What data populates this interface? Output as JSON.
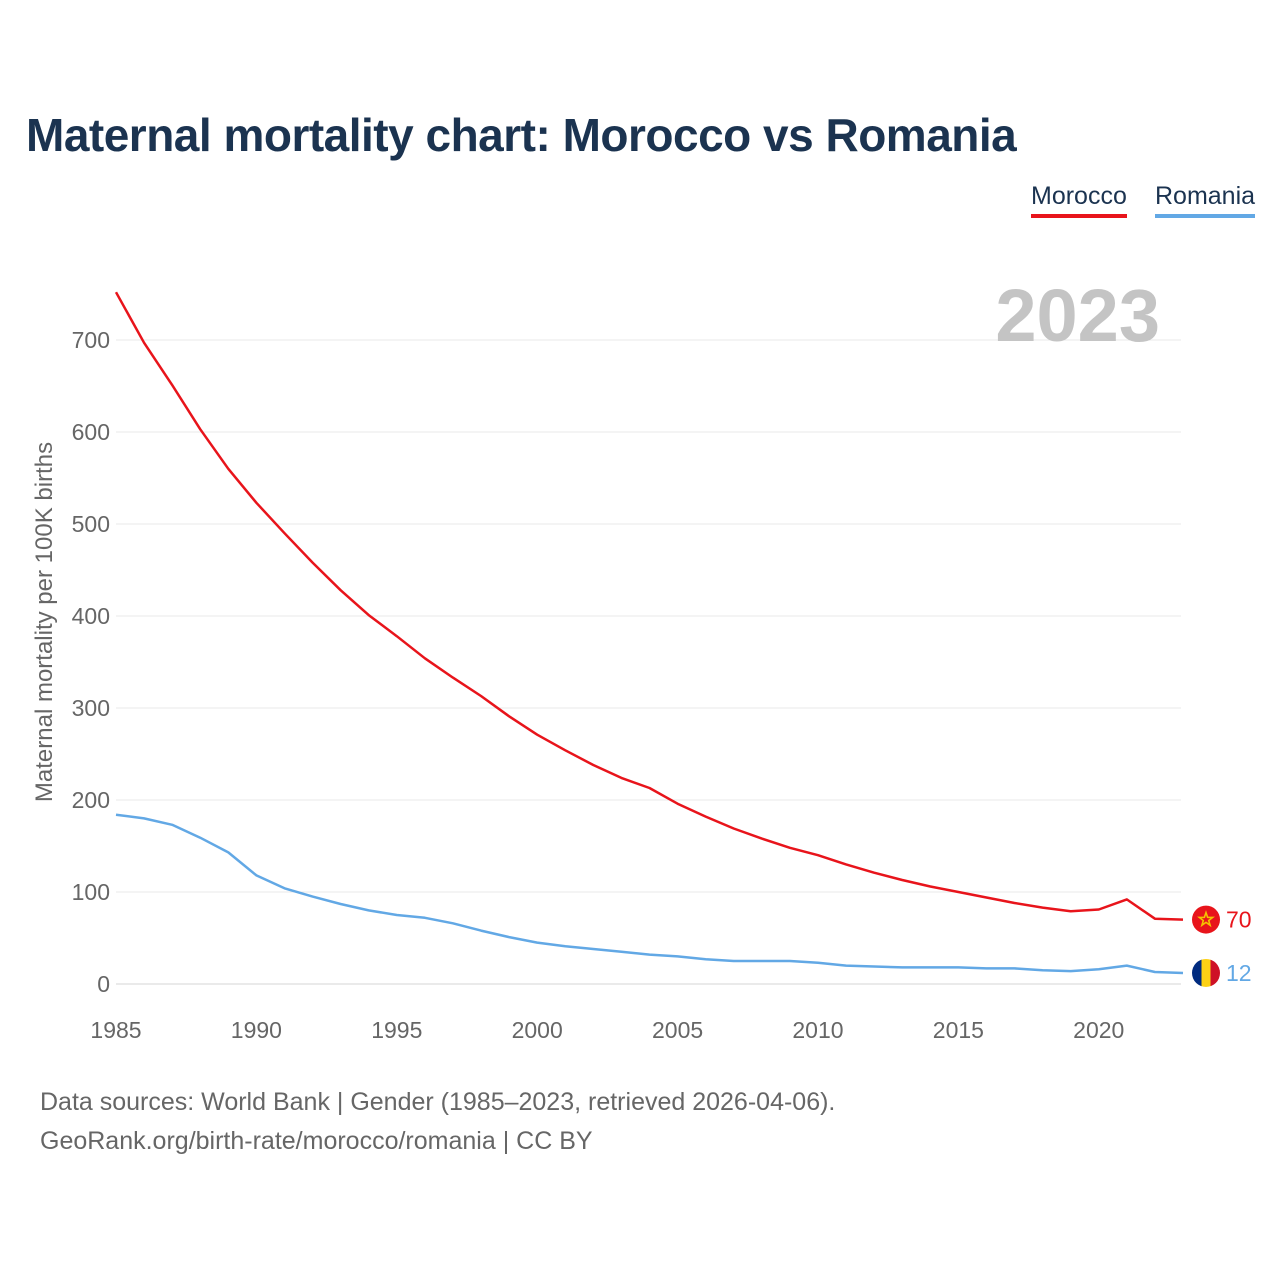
{
  "title": "Maternal mortality chart: Morocco vs Romania",
  "legend": [
    {
      "label": "Morocco",
      "color": "#e8141b"
    },
    {
      "label": "Romania",
      "color": "#62a8e5"
    }
  ],
  "year_overlay": "2023",
  "footer": {
    "source": "Data sources: World Bank | Gender (1985–2023, retrieved 2026-04-06).",
    "link": "GeoRank.org/birth-rate/morocco/romania | CC BY"
  },
  "chart_data": {
    "type": "line",
    "title": "Maternal mortality chart: Morocco vs Romania",
    "xlabel": "",
    "ylabel": "Maternal mortality per 100K births",
    "xlim": [
      1985,
      2023
    ],
    "ylim": [
      0,
      760
    ],
    "xticks": [
      1985,
      1990,
      1995,
      2000,
      2005,
      2010,
      2015,
      2020
    ],
    "yticks": [
      0,
      100,
      200,
      300,
      400,
      500,
      600,
      700
    ],
    "grid": true,
    "legend_position": "top-right",
    "x": [
      1985,
      1986,
      1987,
      1988,
      1989,
      1990,
      1991,
      1992,
      1993,
      1994,
      1995,
      1996,
      1997,
      1998,
      1999,
      2000,
      2001,
      2002,
      2003,
      2004,
      2005,
      2006,
      2007,
      2008,
      2009,
      2010,
      2011,
      2012,
      2013,
      2014,
      2015,
      2016,
      2017,
      2018,
      2019,
      2020,
      2021,
      2022,
      2023
    ],
    "series": [
      {
        "name": "Morocco",
        "color": "#e8141b",
        "end_label": "70",
        "values": [
          752,
          697,
          651,
          603,
          560,
          523,
          490,
          458,
          428,
          401,
          378,
          354,
          333,
          313,
          291,
          271,
          254,
          238,
          224,
          213,
          196,
          182,
          169,
          158,
          148,
          140,
          130,
          121,
          113,
          106,
          100,
          94,
          88,
          83,
          79,
          81,
          92,
          71,
          70
        ]
      },
      {
        "name": "Romania",
        "color": "#62a8e5",
        "end_label": "12",
        "values": [
          184,
          180,
          173,
          159,
          143,
          118,
          104,
          95,
          87,
          80,
          75,
          72,
          66,
          58,
          51,
          45,
          41,
          38,
          35,
          32,
          30,
          27,
          25,
          25,
          25,
          23,
          20,
          19,
          18,
          18,
          18,
          17,
          17,
          15,
          14,
          16,
          20,
          13,
          12
        ]
      }
    ]
  }
}
